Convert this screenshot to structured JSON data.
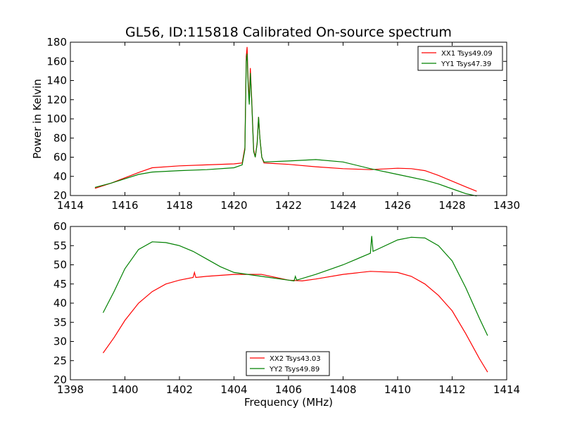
{
  "figure_title": "GL56, ID:115818 Calibrated On-source spectrum",
  "chart_data": [
    {
      "type": "line",
      "ylabel": "Power in Kelvin",
      "xlabel": "",
      "xlim": [
        1414,
        1430
      ],
      "ylim": [
        20,
        180
      ],
      "xticks": [
        1414,
        1416,
        1418,
        1420,
        1422,
        1424,
        1426,
        1428,
        1430
      ],
      "yticks": [
        20,
        40,
        60,
        80,
        100,
        120,
        140,
        160,
        180
      ],
      "grid": false,
      "legend": "top-right",
      "series": [
        {
          "name": "XX1 Tsys49.09",
          "color": "#ff0000",
          "points": [
            [
              1414.9,
              27.5
            ],
            [
              1415.5,
              33
            ],
            [
              1416,
              38.5
            ],
            [
              1416.5,
              44
            ],
            [
              1417,
              49
            ],
            [
              1418,
              51
            ],
            [
              1419,
              52
            ],
            [
              1420,
              53
            ],
            [
              1420.3,
              54
            ],
            [
              1420.4,
              70
            ],
            [
              1420.45,
              165
            ],
            [
              1420.48,
              175
            ],
            [
              1420.52,
              140
            ],
            [
              1420.56,
              118
            ],
            [
              1420.6,
              153
            ],
            [
              1420.65,
              120
            ],
            [
              1420.72,
              68
            ],
            [
              1420.78,
              60
            ],
            [
              1420.85,
              75
            ],
            [
              1420.9,
              102
            ],
            [
              1420.95,
              80
            ],
            [
              1421.02,
              60
            ],
            [
              1421.1,
              54
            ],
            [
              1422,
              52.5
            ],
            [
              1423,
              50
            ],
            [
              1424,
              48
            ],
            [
              1425,
              47
            ],
            [
              1426,
              48.5
            ],
            [
              1426.5,
              48
            ],
            [
              1427,
              46
            ],
            [
              1427.5,
              41
            ],
            [
              1428,
              35
            ],
            [
              1428.5,
              29
            ],
            [
              1428.9,
              24.5
            ]
          ]
        },
        {
          "name": "YY1 Tsys47.39",
          "color": "#008000",
          "points": [
            [
              1414.9,
              28.5
            ],
            [
              1415.5,
              33
            ],
            [
              1416,
              37.5
            ],
            [
              1416.5,
              42
            ],
            [
              1417,
              44.5
            ],
            [
              1418,
              46
            ],
            [
              1419,
              47
            ],
            [
              1420,
              49
            ],
            [
              1420.3,
              52
            ],
            [
              1420.4,
              68
            ],
            [
              1420.45,
              160
            ],
            [
              1420.48,
              168
            ],
            [
              1420.52,
              135
            ],
            [
              1420.56,
              115
            ],
            [
              1420.6,
              148
            ],
            [
              1420.65,
              118
            ],
            [
              1420.72,
              66
            ],
            [
              1420.78,
              60
            ],
            [
              1420.85,
              74
            ],
            [
              1420.9,
              102
            ],
            [
              1420.95,
              80
            ],
            [
              1421.02,
              60
            ],
            [
              1421.1,
              55
            ],
            [
              1422,
              56
            ],
            [
              1423,
              57.5
            ],
            [
              1424,
              55
            ],
            [
              1425,
              48
            ],
            [
              1426,
              42
            ],
            [
              1427,
              36
            ],
            [
              1427.5,
              32
            ],
            [
              1428,
              27
            ],
            [
              1428.5,
              22
            ],
            [
              1428.9,
              19.5
            ]
          ]
        }
      ]
    },
    {
      "type": "line",
      "ylabel": "",
      "xlabel": "Frequency (MHz)",
      "xlim": [
        1398,
        1414
      ],
      "ylim": [
        20,
        60
      ],
      "xticks": [
        1398,
        1400,
        1402,
        1404,
        1406,
        1408,
        1410,
        1412,
        1414
      ],
      "yticks": [
        20,
        25,
        30,
        35,
        40,
        45,
        50,
        55,
        60
      ],
      "grid": false,
      "legend": "bottom-center",
      "series": [
        {
          "name": "XX2 Tsys43.03",
          "color": "#ff0000",
          "points": [
            [
              1399.2,
              27
            ],
            [
              1399.6,
              31
            ],
            [
              1400,
              35.5
            ],
            [
              1400.5,
              40
            ],
            [
              1401,
              43
            ],
            [
              1401.5,
              45
            ],
            [
              1402,
              46
            ],
            [
              1402.5,
              46.7
            ],
            [
              1402.55,
              48
            ],
            [
              1402.6,
              46.7
            ],
            [
              1403,
              47
            ],
            [
              1404,
              47.5
            ],
            [
              1405,
              47.5
            ],
            [
              1406,
              46
            ],
            [
              1406.5,
              45.8
            ],
            [
              1407,
              46.3
            ],
            [
              1408,
              47.5
            ],
            [
              1409,
              48.3
            ],
            [
              1410,
              48
            ],
            [
              1410.5,
              47
            ],
            [
              1411,
              45
            ],
            [
              1411.5,
              42
            ],
            [
              1412,
              38
            ],
            [
              1412.5,
              32
            ],
            [
              1413,
              25.5
            ],
            [
              1413.3,
              22
            ]
          ]
        },
        {
          "name": "YY2 Tsys49.89",
          "color": "#008000",
          "points": [
            [
              1399.2,
              37.5
            ],
            [
              1399.6,
              43
            ],
            [
              1400,
              49
            ],
            [
              1400.5,
              54
            ],
            [
              1401,
              56
            ],
            [
              1401.5,
              55.8
            ],
            [
              1402,
              55
            ],
            [
              1402.5,
              53.5
            ],
            [
              1403,
              51.5
            ],
            [
              1403.5,
              49.5
            ],
            [
              1404,
              48
            ],
            [
              1405,
              47
            ],
            [
              1406,
              46
            ],
            [
              1406.2,
              45.8
            ],
            [
              1406.25,
              47
            ],
            [
              1406.3,
              46
            ],
            [
              1407,
              47.5
            ],
            [
              1408,
              50
            ],
            [
              1409,
              53
            ],
            [
              1409.05,
              57.5
            ],
            [
              1409.1,
              53.5
            ],
            [
              1410,
              56.5
            ],
            [
              1410.5,
              57.2
            ],
            [
              1411,
              57
            ],
            [
              1411.5,
              55
            ],
            [
              1412,
              51
            ],
            [
              1412.5,
              44
            ],
            [
              1413,
              36
            ],
            [
              1413.3,
              31.5
            ]
          ]
        }
      ]
    }
  ]
}
